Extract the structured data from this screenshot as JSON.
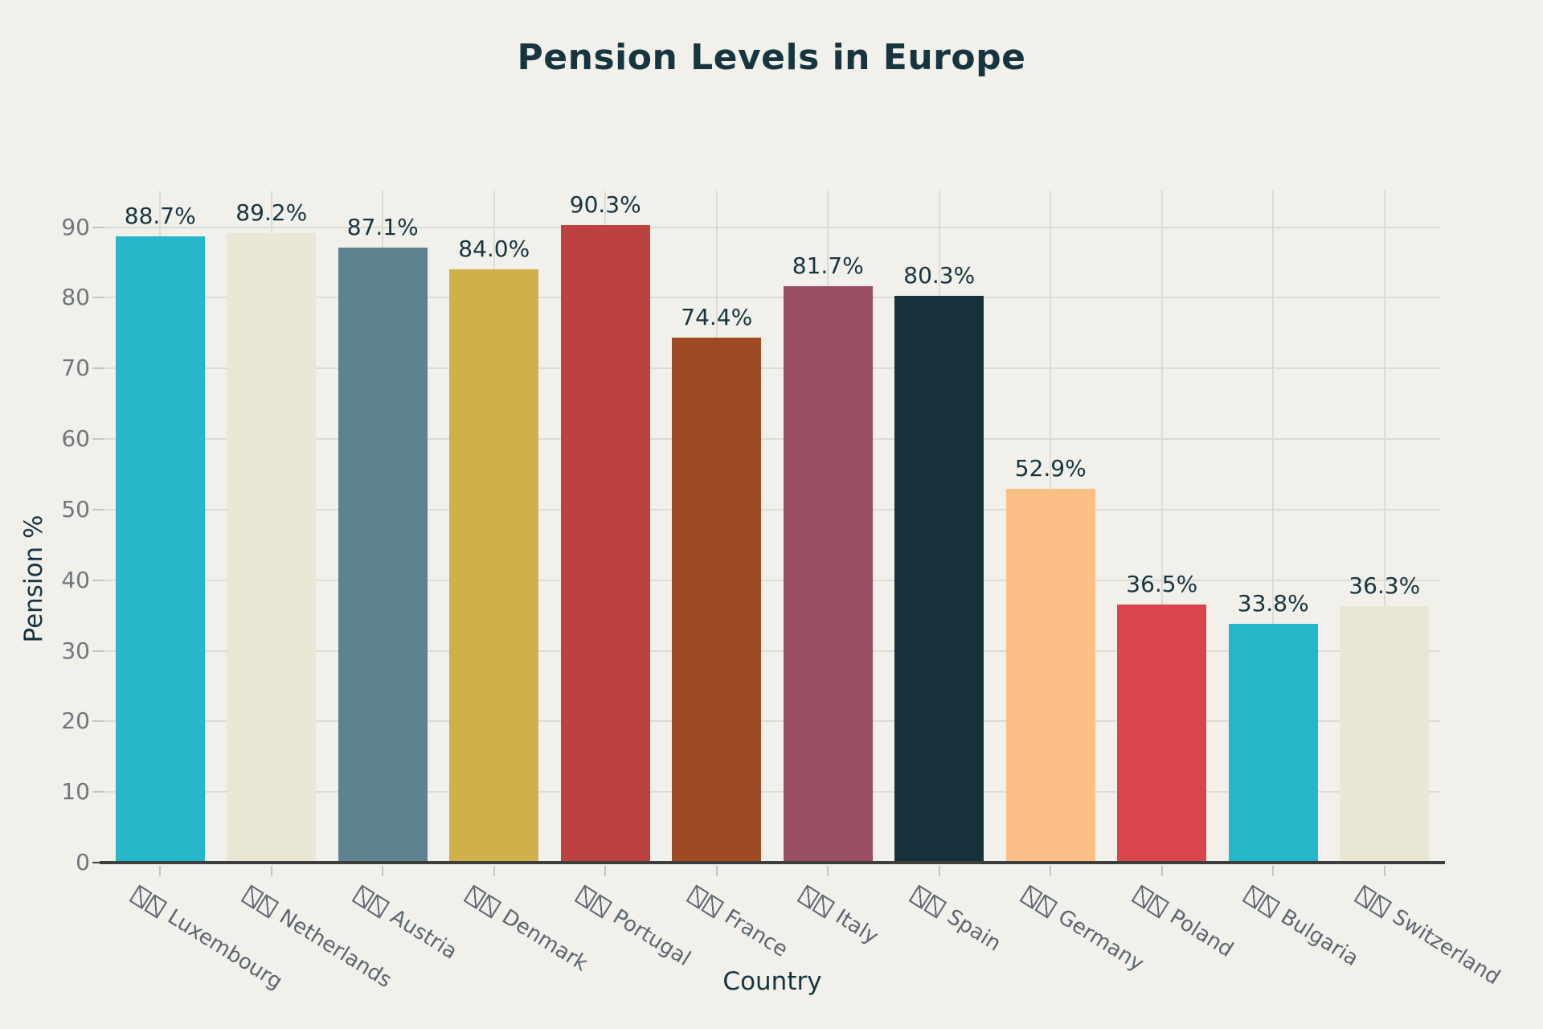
{
  "chart_data": {
    "type": "bar",
    "title": "Pension Levels in Europe",
    "xlabel": "Country",
    "ylabel": "Pension %",
    "ylim": [
      0,
      95
    ],
    "yticks": [
      0,
      10,
      20,
      30,
      40,
      50,
      60,
      70,
      80,
      90
    ],
    "grid": true,
    "legend": false,
    "x_tick_prefix": "two missing-glyph (tofu) boxes shown where each country flag emoji failed to render",
    "categories": [
      "Luxembourg",
      "Netherlands",
      "Austria",
      "Denmark",
      "Portugal",
      "France",
      "Italy",
      "Spain",
      "Germany",
      "Poland",
      "Bulgaria",
      "Switzerland"
    ],
    "values": [
      88.7,
      89.2,
      87.1,
      84.0,
      90.3,
      74.4,
      81.7,
      80.3,
      52.9,
      36.5,
      33.8,
      36.3
    ],
    "value_labels": [
      "88.7%",
      "89.2%",
      "87.1%",
      "84.0%",
      "90.3%",
      "74.4%",
      "81.7%",
      "80.3%",
      "52.9%",
      "36.5%",
      "33.8%",
      "36.3%"
    ],
    "bar_colors": [
      "#25b6ca",
      "#eae7d4",
      "#5e8290",
      "#d0b04a",
      "#bc4241",
      "#9e4b24",
      "#9a4e62",
      "#16333d",
      "#fcbf85",
      "#d8454a",
      "#25b6ca",
      "#eae7d4"
    ]
  },
  "colors": {
    "background": "#f1f0ea",
    "title_text": "#163540",
    "axis_title_text": "#163540",
    "value_label_text": "#163540",
    "y_tick_text": "#6f767e",
    "x_tick_text": "#5c6671",
    "gridline": "#dcdbd4",
    "axis_line": "#3e3e3c",
    "tick_mark": "#c6c5be"
  }
}
